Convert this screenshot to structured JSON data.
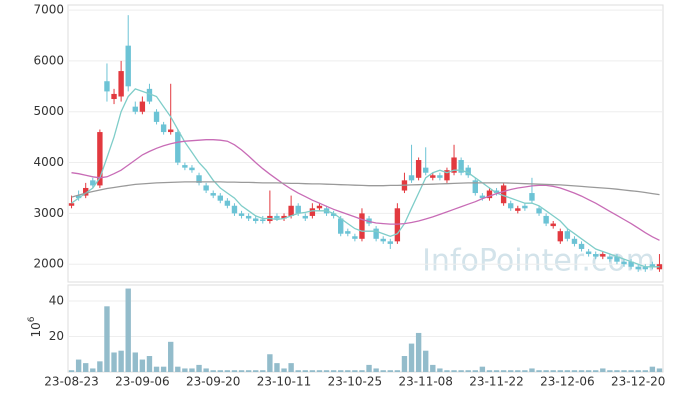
{
  "chart_data": [
    {
      "type": "candlestick",
      "watermark": "InfoPointer.com",
      "up_color": "#e2393f",
      "down_color": "#6cc3d5",
      "ylim": [
        1650,
        7100
      ],
      "yticks": [
        2000,
        3000,
        4000,
        5000,
        6000,
        7000
      ],
      "grid": true,
      "open": [
        3150,
        3350,
        3350,
        3650,
        3550,
        5600,
        5250,
        5300,
        6300,
        5100,
        5000,
        5450,
        5000,
        4750,
        4600,
        4600,
        3950,
        3900,
        3750,
        3550,
        3400,
        3350,
        3250,
        3150,
        3000,
        2950,
        2900,
        2880,
        2850,
        2950,
        2900,
        2950,
        3150,
        2950,
        2950,
        3100,
        3100,
        3000,
        2900,
        2650,
        2550,
        2500,
        2900,
        2700,
        2500,
        2450,
        2450,
        3450,
        3750,
        3700,
        3900,
        3700,
        3750,
        3650,
        3800,
        4050,
        3900,
        3650,
        3350,
        3300,
        3450,
        3200,
        3200,
        3050,
        3150,
        3400,
        3100,
        2950,
        2750,
        2450,
        2650,
        2500,
        2400,
        2250,
        2200,
        2150,
        2150,
        2150,
        2050,
        2050,
        1950,
        1950,
        2000,
        1900
      ],
      "high": [
        3350,
        3450,
        3600,
        3700,
        4650,
        5950,
        5450,
        6000,
        6900,
        5200,
        5300,
        5550,
        5050,
        4800,
        5550,
        4650,
        4000,
        3950,
        3800,
        3600,
        3450,
        3400,
        3300,
        3200,
        3050,
        3000,
        2950,
        2950,
        3450,
        3000,
        3000,
        3350,
        3200,
        3000,
        3200,
        3200,
        3150,
        3050,
        2950,
        2700,
        2600,
        3100,
        2950,
        2750,
        2550,
        2500,
        3200,
        3800,
        4350,
        4100,
        4300,
        3800,
        3800,
        3900,
        4350,
        4100,
        3950,
        3700,
        3400,
        3500,
        3500,
        3600,
        3250,
        3150,
        3200,
        3700,
        3150,
        3000,
        2850,
        2700,
        2700,
        2550,
        2450,
        2300,
        2250,
        2250,
        2200,
        2200,
        2100,
        2100,
        2000,
        2000,
        2050,
        2200
      ],
      "low": [
        3100,
        3250,
        3300,
        3500,
        3500,
        5200,
        5150,
        5200,
        5400,
        4950,
        4950,
        5150,
        4750,
        4550,
        4550,
        3950,
        3850,
        3800,
        3550,
        3400,
        3300,
        3200,
        3100,
        2950,
        2900,
        2850,
        2800,
        2800,
        2800,
        2850,
        2850,
        2900,
        2950,
        2850,
        2900,
        3050,
        2950,
        2900,
        2550,
        2550,
        2450,
        2450,
        2750,
        2450,
        2400,
        2300,
        2400,
        3400,
        3600,
        3650,
        3750,
        3650,
        3650,
        3600,
        3750,
        3750,
        3700,
        3350,
        3250,
        3250,
        3350,
        3150,
        3050,
        3000,
        3050,
        3200,
        2950,
        2750,
        2700,
        2400,
        2450,
        2350,
        2250,
        2150,
        2100,
        2100,
        2050,
        2000,
        1950,
        1900,
        1850,
        1850,
        1900,
        1850
      ],
      "close": [
        3200,
        3300,
        3500,
        3550,
        4600,
        5400,
        5350,
        5800,
        5500,
        5000,
        5200,
        5200,
        4800,
        4600,
        4650,
        4000,
        3900,
        3850,
        3600,
        3450,
        3350,
        3250,
        3150,
        3000,
        2950,
        2900,
        2850,
        2850,
        2950,
        2900,
        2950,
        3150,
        3000,
        2900,
        3100,
        3150,
        3000,
        2950,
        2600,
        2600,
        2500,
        3000,
        2800,
        2500,
        2450,
        2400,
        3100,
        3650,
        3650,
        4050,
        3800,
        3750,
        3700,
        3850,
        4100,
        3800,
        3750,
        3400,
        3300,
        3450,
        3400,
        3550,
        3100,
        3100,
        3100,
        3250,
        3000,
        2800,
        2800,
        2650,
        2500,
        2400,
        2300,
        2200,
        2150,
        2200,
        2100,
        2050,
        2000,
        1950,
        1900,
        1900,
        1950,
        2000
      ],
      "series": [
        {
          "color": "#7fcdc9",
          "values": [
            3200,
            3300,
            3400,
            3500,
            3700,
            4100,
            4500,
            5000,
            5300,
            5450,
            5400,
            5350,
            5300,
            5100,
            4900,
            4650,
            4400,
            4200,
            4000,
            3850,
            3650,
            3500,
            3400,
            3300,
            3150,
            3050,
            2950,
            2900,
            2900,
            2880,
            2900,
            2950,
            3000,
            3020,
            3050,
            3050,
            3050,
            3000,
            2900,
            2800,
            2700,
            2650,
            2650,
            2650,
            2600,
            2550,
            2600,
            2800,
            3100,
            3400,
            3700,
            3800,
            3850,
            3800,
            3850,
            3850,
            3800,
            3700,
            3600,
            3500,
            3400,
            3350,
            3300,
            3250,
            3200,
            3200,
            3150,
            3050,
            2950,
            2850,
            2700,
            2600,
            2500,
            2400,
            2300,
            2250,
            2200,
            2150,
            2100,
            2050,
            2000,
            1950,
            1950,
            1950
          ]
        },
        {
          "color": "#c86cb6",
          "values": [
            3800,
            3780,
            3750,
            3720,
            3700,
            3720,
            3780,
            3850,
            3950,
            4050,
            4150,
            4220,
            4280,
            4330,
            4370,
            4400,
            4420,
            4430,
            4440,
            4450,
            4450,
            4440,
            4420,
            4350,
            4250,
            4130,
            4000,
            3880,
            3770,
            3670,
            3570,
            3480,
            3400,
            3330,
            3260,
            3200,
            3140,
            3080,
            3030,
            2980,
            2930,
            2880,
            2840,
            2810,
            2800,
            2790,
            2790,
            2800,
            2820,
            2850,
            2890,
            2930,
            2980,
            3030,
            3080,
            3130,
            3180,
            3230,
            3290,
            3340,
            3390,
            3430,
            3470,
            3500,
            3520,
            3540,
            3550,
            3550,
            3530,
            3500,
            3450,
            3400,
            3340,
            3270,
            3200,
            3120,
            3040,
            2960,
            2880,
            2800,
            2710,
            2620,
            2540,
            2470
          ]
        },
        {
          "color": "#9a9a9a",
          "values": [
            3320,
            3360,
            3400,
            3430,
            3460,
            3490,
            3510,
            3530,
            3550,
            3570,
            3580,
            3590,
            3600,
            3605,
            3610,
            3615,
            3620,
            3620,
            3620,
            3620,
            3620,
            3620,
            3615,
            3615,
            3610,
            3610,
            3605,
            3600,
            3600,
            3600,
            3595,
            3590,
            3590,
            3585,
            3580,
            3580,
            3575,
            3570,
            3565,
            3560,
            3555,
            3550,
            3545,
            3545,
            3545,
            3550,
            3550,
            3555,
            3560,
            3565,
            3570,
            3575,
            3580,
            3585,
            3590,
            3595,
            3600,
            3600,
            3600,
            3600,
            3600,
            3600,
            3595,
            3590,
            3585,
            3580,
            3575,
            3570,
            3565,
            3560,
            3550,
            3540,
            3530,
            3520,
            3510,
            3500,
            3490,
            3475,
            3460,
            3445,
            3430,
            3410,
            3390,
            3370
          ]
        }
      ]
    },
    {
      "type": "bar",
      "color": "#93bccb",
      "y_label": "10",
      "y_label_exponent": "6",
      "ylim": [
        0,
        49
      ],
      "yticks": [
        20,
        40
      ],
      "grid": true,
      "categories": [
        "23-08-23",
        null,
        null,
        null,
        null,
        null,
        null,
        null,
        null,
        null,
        "23-09-06",
        null,
        null,
        null,
        null,
        null,
        null,
        null,
        null,
        null,
        "23-09-20",
        null,
        null,
        null,
        null,
        null,
        null,
        null,
        null,
        null,
        "23-10-11",
        null,
        null,
        null,
        null,
        null,
        null,
        null,
        null,
        null,
        "23-10-25",
        null,
        null,
        null,
        null,
        null,
        null,
        null,
        null,
        null,
        "23-11-08",
        null,
        null,
        null,
        null,
        null,
        null,
        null,
        null,
        null,
        "23-11-22",
        null,
        null,
        null,
        null,
        null,
        null,
        null,
        null,
        null,
        "23-12-06",
        null,
        null,
        null,
        null,
        null,
        null,
        null,
        null,
        null,
        "23-12-20",
        null,
        null,
        null
      ],
      "values": [
        1,
        7,
        5,
        2,
        6,
        37,
        11,
        12,
        47,
        11,
        7,
        9,
        3,
        3,
        17,
        3,
        2,
        2,
        4,
        2,
        1,
        1,
        1,
        1,
        1,
        1,
        1,
        1,
        10,
        5,
        2,
        5,
        1,
        1,
        1,
        1,
        1,
        1,
        1,
        1,
        1,
        1,
        4,
        2,
        1,
        1,
        1,
        9,
        16,
        22,
        12,
        4,
        2,
        1,
        1,
        1,
        1,
        1,
        3,
        1,
        1,
        1,
        1,
        1,
        1,
        2,
        1,
        1,
        1,
        1,
        1,
        1,
        1,
        1,
        1,
        2,
        1,
        1,
        1,
        1,
        1,
        1,
        3,
        2
      ]
    }
  ]
}
